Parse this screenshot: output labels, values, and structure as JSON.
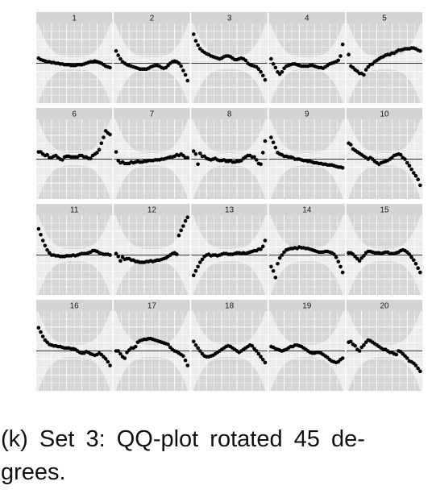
{
  "chart_data": {
    "type": "scatter",
    "layout": "small-multiples",
    "grid": true,
    "reference_line_y": 0,
    "band": "acceptance band (shaded)",
    "panels": [
      {
        "label": "1",
        "values": [
          0.07,
          0.05,
          0.04,
          0.03,
          0.02,
          0.02,
          0.01,
          0.01,
          0.0,
          0.0,
          -0.01,
          -0.01,
          -0.02,
          -0.02,
          -0.02,
          -0.03,
          -0.03,
          -0.03,
          -0.02,
          -0.02,
          -0.02,
          -0.01,
          0.0,
          0.01,
          0.02,
          0.02,
          0.03,
          0.02,
          0.01,
          -0.0,
          -0.02,
          -0.04,
          -0.05,
          -0.06
        ]
      },
      {
        "label": "2",
        "values": [
          0.17,
          0.11,
          0.06,
          0.02,
          -0.0,
          -0.02,
          -0.03,
          -0.04,
          -0.05,
          -0.06,
          -0.07,
          -0.08,
          -0.08,
          -0.08,
          -0.08,
          -0.07,
          -0.05,
          -0.04,
          -0.03,
          -0.03,
          -0.04,
          -0.06,
          -0.07,
          -0.06,
          -0.03,
          0.0,
          0.02,
          0.03,
          0.02,
          -0.0,
          -0.04,
          -0.1,
          -0.16,
          -0.24
        ]
      },
      {
        "label": "3",
        "values": [
          0.4,
          0.31,
          0.25,
          0.2,
          0.17,
          0.15,
          0.13,
          0.12,
          0.1,
          0.09,
          0.08,
          0.07,
          0.06,
          0.07,
          0.09,
          0.1,
          0.1,
          0.09,
          0.07,
          0.05,
          0.05,
          0.06,
          0.07,
          0.06,
          0.04,
          0.0,
          -0.02,
          -0.03,
          -0.04,
          -0.05,
          -0.08,
          -0.12,
          -0.17,
          -0.23
        ]
      },
      {
        "label": "4",
        "values": [
          0.06,
          -0.01,
          -0.06,
          -0.12,
          -0.15,
          -0.12,
          -0.07,
          -0.04,
          -0.03,
          -0.02,
          -0.01,
          -0.01,
          -0.02,
          -0.03,
          -0.04,
          -0.04,
          -0.04,
          -0.04,
          -0.03,
          -0.03,
          -0.04,
          -0.05,
          -0.06,
          -0.06,
          -0.07,
          -0.05,
          -0.03,
          -0.01,
          0.0,
          0.01,
          0.02,
          0.04,
          0.1,
          0.26
        ]
      },
      {
        "label": "5",
        "values": [
          0.12,
          -0.04,
          -0.06,
          -0.09,
          -0.11,
          -0.14,
          -0.14,
          -0.16,
          -0.09,
          -0.05,
          -0.02,
          -0.01,
          0.02,
          0.04,
          0.06,
          0.08,
          0.09,
          0.11,
          0.12,
          0.12,
          0.14,
          0.14,
          0.16,
          0.18,
          0.18,
          0.19,
          0.2,
          0.2,
          0.2,
          0.21,
          0.21,
          0.2,
          0.18,
          0.17
        ]
      },
      {
        "label": "6",
        "values": [
          0.1,
          0.1,
          0.07,
          0.05,
          0.06,
          0.02,
          0.02,
          0.04,
          0.05,
          0.02,
          0.0,
          -0.01,
          0.03,
          0.04,
          0.04,
          0.03,
          0.03,
          0.03,
          0.03,
          0.05,
          0.05,
          0.03,
          0.03,
          0.01,
          0.01,
          0.05,
          0.07,
          0.09,
          0.13,
          0.22,
          0.3,
          0.39,
          0.36,
          0.34
        ]
      },
      {
        "label": "7",
        "values": [
          0.1,
          -0.02,
          -0.05,
          -0.04,
          -0.06,
          -0.06,
          -0.06,
          -0.04,
          -0.05,
          -0.04,
          -0.03,
          -0.04,
          -0.04,
          -0.03,
          -0.03,
          -0.02,
          -0.02,
          -0.02,
          -0.01,
          -0.01,
          -0.01,
          0.0,
          0.0,
          0.01,
          0.02,
          0.03,
          0.03,
          0.04,
          0.06,
          0.05,
          0.07,
          0.05,
          0.02,
          0.02
        ]
      },
      {
        "label": "8",
        "values": [
          0.11,
          0.07,
          -0.07,
          0.08,
          0.04,
          0.04,
          0.01,
          -0.0,
          -0.01,
          0.0,
          0.01,
          -0.01,
          -0.02,
          -0.02,
          -0.01,
          -0.03,
          -0.03,
          -0.02,
          -0.04,
          -0.04,
          -0.03,
          -0.03,
          -0.02,
          0.01,
          0.03,
          0.05,
          0.05,
          0.03,
          0.03,
          -0.01,
          -0.06,
          -0.07,
          0.09,
          0.25
        ]
      },
      {
        "label": "9",
        "values": [
          0.3,
          0.23,
          0.16,
          0.09,
          0.07,
          0.06,
          0.04,
          0.04,
          0.03,
          0.03,
          0.02,
          0.0,
          0.0,
          -0.0,
          -0.01,
          -0.02,
          -0.02,
          -0.03,
          -0.03,
          -0.04,
          -0.05,
          -0.05,
          -0.06,
          -0.06,
          -0.07,
          -0.07,
          -0.08,
          -0.08,
          -0.08,
          -0.09,
          -0.1,
          -0.11,
          -0.11,
          -0.12
        ]
      },
      {
        "label": "10",
        "values": [
          0.22,
          0.2,
          0.14,
          0.12,
          0.1,
          0.08,
          0.06,
          0.04,
          0.02,
          0.0,
          0.02,
          0.0,
          -0.03,
          -0.05,
          -0.07,
          -0.05,
          -0.04,
          -0.03,
          -0.02,
          -0.0,
          0.02,
          0.05,
          0.06,
          0.07,
          0.06,
          0.02,
          -0.0,
          -0.05,
          -0.09,
          -0.14,
          -0.19,
          -0.23,
          -0.28,
          -0.36
        ]
      },
      {
        "label": "11",
        "values": [
          0.36,
          0.28,
          0.2,
          0.13,
          0.07,
          0.03,
          0.0,
          -0.0,
          -0.01,
          -0.01,
          -0.02,
          -0.02,
          -0.02,
          -0.01,
          -0.01,
          -0.01,
          -0.0,
          -0.01,
          -0.0,
          0.01,
          0.02,
          0.02,
          0.02,
          0.03,
          0.04,
          0.06,
          0.06,
          0.05,
          0.03,
          0.02,
          0.01,
          0.01,
          0.01,
          0.0
        ]
      },
      {
        "label": "12",
        "values": [
          0.02,
          -0.02,
          -0.08,
          -0.03,
          -0.06,
          -0.05,
          -0.05,
          -0.07,
          -0.07,
          -0.09,
          -0.09,
          -0.1,
          -0.1,
          -0.1,
          -0.09,
          -0.09,
          -0.08,
          -0.09,
          -0.08,
          -0.07,
          -0.07,
          -0.06,
          -0.05,
          -0.04,
          -0.02,
          -0.0,
          0.02,
          0.03,
          0.01,
          0.27,
          0.34,
          0.4,
          0.47,
          0.52
        ]
      },
      {
        "label": "13",
        "values": [
          -0.28,
          -0.22,
          -0.16,
          -0.1,
          -0.06,
          -0.02,
          0.0,
          0.01,
          -0.01,
          0.0,
          0.0,
          -0.01,
          0.0,
          0.01,
          0.02,
          0.02,
          0.01,
          0.01,
          0.01,
          0.02,
          0.03,
          0.03,
          0.02,
          0.03,
          0.02,
          0.03,
          0.04,
          0.05,
          0.06,
          0.06,
          0.08,
          0.08,
          0.12,
          0.2
        ]
      },
      {
        "label": "14",
        "values": [
          -0.16,
          -0.22,
          -0.31,
          -0.12,
          -0.04,
          0.0,
          0.04,
          0.07,
          0.08,
          0.09,
          0.09,
          0.1,
          0.09,
          0.11,
          0.1,
          0.1,
          0.09,
          0.09,
          0.08,
          0.07,
          0.06,
          0.05,
          0.04,
          0.04,
          0.04,
          0.05,
          0.05,
          0.04,
          0.03,
          0.01,
          -0.03,
          -0.09,
          -0.16,
          -0.24
        ]
      },
      {
        "label": "15",
        "values": [
          0.03,
          0.03,
          0.01,
          -0.02,
          -0.05,
          -0.08,
          -0.04,
          -0.01,
          0.03,
          0.05,
          0.05,
          0.04,
          0.03,
          0.03,
          0.03,
          0.02,
          0.03,
          0.04,
          0.04,
          0.02,
          0.02,
          0.02,
          0.03,
          0.04,
          0.06,
          0.07,
          0.06,
          0.04,
          0.01,
          -0.03,
          -0.07,
          -0.12,
          -0.18,
          -0.24
        ]
      },
      {
        "label": "16",
        "values": [
          0.32,
          0.26,
          0.2,
          0.15,
          0.12,
          0.09,
          0.08,
          0.07,
          0.07,
          0.06,
          0.06,
          0.05,
          0.04,
          0.04,
          0.04,
          0.03,
          0.03,
          0.02,
          0.0,
          -0.02,
          -0.03,
          -0.03,
          -0.01,
          -0.02,
          -0.04,
          -0.05,
          -0.06,
          -0.05,
          -0.03,
          -0.05,
          -0.08,
          -0.11,
          -0.15,
          -0.2
        ]
      },
      {
        "label": "17",
        "values": [
          0.0,
          -0.0,
          -0.04,
          -0.08,
          -0.1,
          -0.02,
          0.01,
          0.04,
          0.04,
          0.06,
          0.12,
          0.14,
          0.15,
          0.16,
          0.16,
          0.17,
          0.17,
          0.16,
          0.15,
          0.14,
          0.13,
          0.12,
          0.11,
          0.1,
          0.09,
          0.05,
          0.02,
          0.0,
          -0.01,
          -0.03,
          -0.05,
          -0.07,
          -0.13,
          -0.2
        ]
      },
      {
        "label": "18",
        "values": [
          0.13,
          0.08,
          0.04,
          0.0,
          -0.04,
          -0.07,
          -0.08,
          -0.08,
          -0.07,
          -0.06,
          -0.04,
          -0.02,
          -0.0,
          0.02,
          0.04,
          0.06,
          0.07,
          0.06,
          0.04,
          0.02,
          -0.0,
          -0.02,
          0.0,
          0.02,
          0.04,
          0.06,
          0.08,
          0.07,
          0.03,
          -0.0,
          -0.04,
          -0.08,
          -0.12,
          -0.16
        ]
      },
      {
        "label": "19",
        "values": [
          0.06,
          0.05,
          0.03,
          0.02,
          0.01,
          0.0,
          0.01,
          0.02,
          0.04,
          0.06,
          0.06,
          0.08,
          0.08,
          0.07,
          0.06,
          0.04,
          0.02,
          0.0,
          -0.02,
          -0.03,
          -0.03,
          -0.02,
          -0.02,
          -0.03,
          -0.05,
          -0.07,
          -0.09,
          -0.12,
          -0.14,
          -0.15,
          -0.16,
          -0.15,
          -0.12,
          -0.1
        ]
      },
      {
        "label": "20",
        "values": [
          0.12,
          0.13,
          0.09,
          0.07,
          0.02,
          0.0,
          0.05,
          0.08,
          0.12,
          0.15,
          0.14,
          0.12,
          0.1,
          0.08,
          0.06,
          0.04,
          0.02,
          0.02,
          -0.0,
          -0.02,
          -0.02,
          -0.04,
          -0.05,
          0.0,
          -0.01,
          -0.04,
          -0.07,
          -0.1,
          -0.14,
          -0.15,
          -0.17,
          -0.2,
          -0.24,
          -0.28
        ]
      }
    ]
  },
  "caption": {
    "line1": "(k) Set 3: QQ-plot rotated 45 de-",
    "line2": "grees."
  }
}
